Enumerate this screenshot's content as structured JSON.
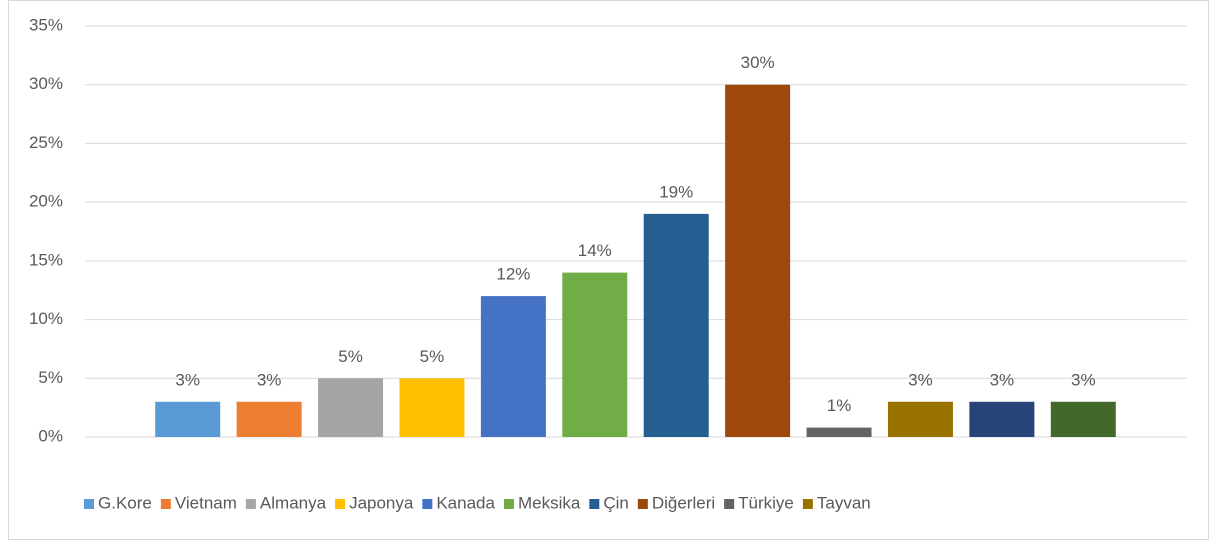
{
  "chart_data": {
    "type": "bar",
    "categories": [
      "G.Kore",
      "Vietnam",
      "Almanya",
      "Japonya",
      "Kanada",
      "Meksika",
      "Çin",
      "Diğerleri",
      "Türkiye",
      "Tayvan",
      null,
      null
    ],
    "values": [
      3,
      3,
      5,
      5,
      12,
      14,
      19,
      30,
      0.8,
      3,
      3,
      3
    ],
    "value_labels": [
      "3%",
      "3%",
      "5%",
      "5%",
      "12%",
      "14%",
      "19%",
      "30%",
      "1%",
      "3%",
      "3%",
      "3%"
    ],
    "colors": [
      "#5b9bd5",
      "#ed7d31",
      "#a5a5a5",
      "#ffc000",
      "#4472c4",
      "#70ad47",
      "#255e91",
      "#9e480e",
      "#636363",
      "#997300",
      "#264478",
      "#43682b"
    ],
    "ylim": [
      0,
      35
    ],
    "yticks": [
      {
        "value": 0,
        "label": "0%"
      },
      {
        "value": 5,
        "label": "5%"
      },
      {
        "value": 10,
        "label": "10%"
      },
      {
        "value": 15,
        "label": "15%"
      },
      {
        "value": 20,
        "label": "20%"
      },
      {
        "value": 25,
        "label": "25%"
      },
      {
        "value": 30,
        "label": "30%"
      },
      {
        "value": 35,
        "label": "35%"
      }
    ],
    "grid": true,
    "legend": "bottom"
  }
}
